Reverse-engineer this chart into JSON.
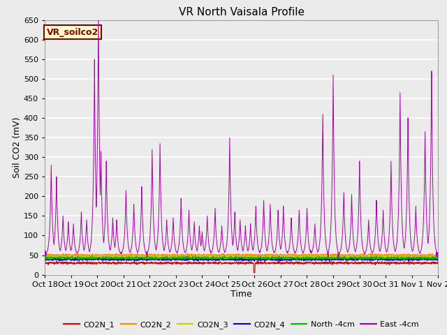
{
  "title": "VR North Vaisala Profile",
  "xlabel": "Time",
  "ylabel": "Soil CO2 (mV)",
  "annotation": "VR_soilco2",
  "ylim": [
    0,
    650
  ],
  "yticks": [
    0,
    50,
    100,
    150,
    200,
    250,
    300,
    350,
    400,
    450,
    500,
    550,
    600,
    650
  ],
  "x_labels": [
    "Oct 18",
    "Oct 19",
    "Oct 20",
    "Oct 21",
    "Oct 22",
    "Oct 23",
    "Oct 24",
    "Oct 25",
    "Oct 26",
    "Oct 27",
    "Oct 28",
    "Oct 29",
    "Oct 30",
    "Oct 31",
    "Nov 1",
    "Nov 2"
  ],
  "num_points": 2000,
  "series": {
    "CO2N_1": {
      "color": "#dd0000"
    },
    "CO2N_2": {
      "color": "#ff8800"
    },
    "CO2N_3": {
      "color": "#cccc00"
    },
    "CO2N_4": {
      "color": "#0000cc"
    },
    "North_-4cm": {
      "color": "#00bb00"
    },
    "East_-4cm": {
      "color": "#aa00aa"
    }
  },
  "bg_color": "#ebebeb",
  "grid_color": "#ffffff",
  "title_fontsize": 11,
  "label_fontsize": 9,
  "tick_fontsize": 8,
  "east_spike_locs": [
    0.25,
    0.45,
    0.7,
    0.9,
    1.1,
    1.4,
    1.6,
    1.9,
    2.05,
    2.15,
    2.35,
    2.6,
    2.75,
    3.1,
    3.4,
    3.7,
    4.1,
    4.4,
    4.65,
    4.9,
    5.2,
    5.5,
    5.7,
    5.9,
    6.0,
    6.2,
    6.5,
    6.75,
    7.05,
    7.25,
    7.45,
    7.65,
    7.85,
    8.05,
    8.35,
    8.6,
    8.9,
    9.1,
    9.4,
    9.7,
    10.0,
    10.3,
    10.6,
    11.0,
    11.4,
    11.7,
    12.0,
    12.35,
    12.65,
    12.9,
    13.2,
    13.55,
    13.85,
    14.15,
    14.5,
    14.75
  ],
  "east_spike_heights": [
    230,
    200,
    100,
    85,
    80,
    110,
    90,
    500,
    625,
    265,
    240,
    95,
    90,
    165,
    130,
    175,
    270,
    285,
    90,
    95,
    145,
    115,
    85,
    75,
    60,
    100,
    120,
    75,
    300,
    110,
    90,
    75,
    80,
    125,
    140,
    130,
    115,
    125,
    95,
    115,
    120,
    80,
    360,
    460,
    160,
    155,
    240,
    90,
    140,
    115,
    240,
    415,
    350,
    125,
    315,
    470
  ],
  "east_base": 50,
  "co2n1_base": 30,
  "co2n2_base": 50,
  "co2n3_base": 46,
  "co2n4_base": 39,
  "north_base": 43
}
